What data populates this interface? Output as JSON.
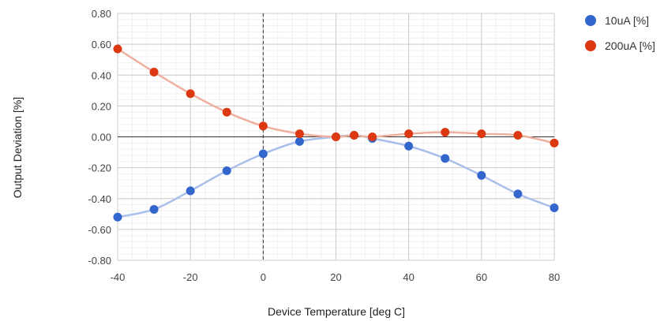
{
  "chart_data": {
    "type": "scatter",
    "title": "",
    "xlabel": "Device Temperature [deg C]",
    "ylabel": "Output Deviation [%]",
    "xlim": [
      -40,
      80
    ],
    "ylim": [
      -0.8,
      0.8
    ],
    "x_ticks": [
      "-40",
      "-20",
      "0",
      "20",
      "40",
      "60",
      "80"
    ],
    "y_ticks": [
      "0.80",
      "0.60",
      "0.40",
      "0.20",
      "0.00",
      "-0.20",
      "-0.40",
      "-0.60",
      "-0.80"
    ],
    "grid": true,
    "smooth_lines": true,
    "legend_position": "right",
    "series": [
      {
        "name": "10uA [%]",
        "color": "#3366cc",
        "line_color": "#a9bfe9",
        "x": [
          -40,
          -30,
          -20,
          -10,
          0,
          10,
          20,
          25,
          30,
          40,
          50,
          60,
          70,
          80
        ],
        "y": [
          -0.52,
          -0.47,
          -0.35,
          -0.22,
          -0.11,
          -0.03,
          0.0,
          0.01,
          -0.01,
          -0.06,
          -0.14,
          -0.25,
          -0.37,
          -0.46
        ]
      },
      {
        "name": "200uA [%]",
        "color": "#dc3912",
        "line_color": "#f0b0a0",
        "x": [
          -40,
          -30,
          -20,
          -10,
          0,
          10,
          20,
          25,
          30,
          40,
          50,
          60,
          70,
          80
        ],
        "y": [
          0.57,
          0.42,
          0.28,
          0.16,
          0.07,
          0.02,
          0.0,
          0.01,
          0.0,
          0.02,
          0.03,
          0.02,
          0.01,
          -0.04
        ]
      }
    ]
  }
}
